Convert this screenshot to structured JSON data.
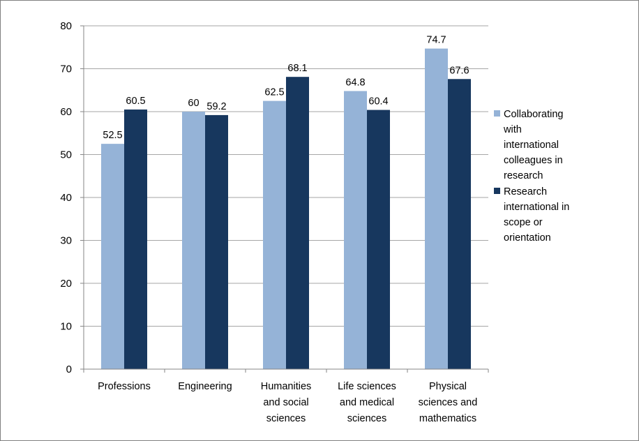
{
  "chart_data": {
    "type": "bar",
    "categories": [
      [
        "Professions"
      ],
      [
        "Engineering"
      ],
      [
        "Humanities",
        "and social",
        "sciences"
      ],
      [
        "Life sciences",
        "and medical",
        "sciences"
      ],
      [
        "Physical",
        "sciences and",
        "mathematics"
      ]
    ],
    "series": [
      {
        "name_lines": [
          "Collaborating",
          "with",
          "international",
          "colleagues in",
          "research"
        ],
        "color": "#95b3d7",
        "values": [
          52.5,
          60,
          62.5,
          64.8,
          74.7
        ],
        "labels": [
          "52.5",
          "60",
          "62.5",
          "64.8",
          "74.7"
        ]
      },
      {
        "name_lines": [
          " Research",
          "international in",
          "scope or",
          "orientation"
        ],
        "color": "#17375e",
        "values": [
          60.5,
          59.2,
          68.1,
          60.4,
          67.6
        ],
        "labels": [
          "60.5",
          "59.2",
          "68.1",
          "60.4",
          "67.6"
        ]
      }
    ],
    "ylim": [
      0,
      80
    ],
    "yticks": [
      "0",
      "10",
      "20",
      "30",
      "40",
      "50",
      "60",
      "70",
      "80"
    ],
    "grid": true,
    "legend_position": "right"
  }
}
